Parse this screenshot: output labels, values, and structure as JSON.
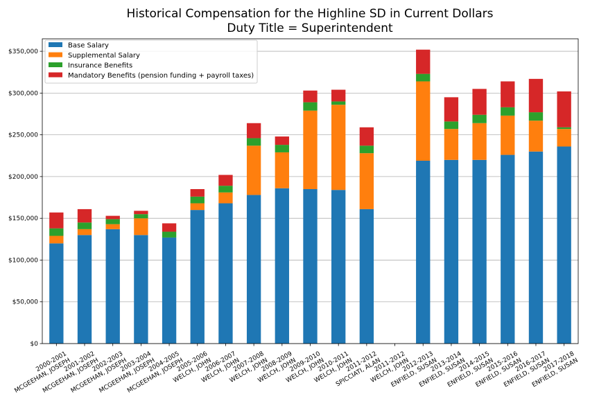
{
  "chart_data": {
    "type": "bar",
    "stacked": true,
    "title_line1": "Historical Compensation for the Highline SD in Current Dollars",
    "title_line2": "Duty Title = Superintendent",
    "xlabel": "",
    "ylabel": "",
    "ylim": [
      0,
      365000
    ],
    "yticks": [
      {
        "value": 0,
        "label": "$0"
      },
      {
        "value": 50000,
        "label": "$50,000"
      },
      {
        "value": 100000,
        "label": "$100,000"
      },
      {
        "value": 150000,
        "label": "$150,000"
      },
      {
        "value": 200000,
        "label": "$200,000"
      },
      {
        "value": 250000,
        "label": "$250,000"
      },
      {
        "value": 300000,
        "label": "$300,000"
      },
      {
        "value": 350000,
        "label": "$350,000"
      }
    ],
    "grid": "horizontal",
    "legend_position": "top-left",
    "categories": [
      {
        "line1": "2000-2001",
        "line2": "MCGEEHAN, JOSEPH"
      },
      {
        "line1": "2001-2002",
        "line2": "MCGEEHAN, JOSEPH"
      },
      {
        "line1": "2002-2003",
        "line2": "MCGEEHAN, JOSEPH"
      },
      {
        "line1": "2003-2004",
        "line2": "MCGEEHAN, JOSEPH"
      },
      {
        "line1": "2004-2005",
        "line2": "MCGEEHAN, JOSEPH"
      },
      {
        "line1": "2005-2006",
        "line2": "WELCH, JOHN"
      },
      {
        "line1": "2006-2007",
        "line2": "WELCH, JOHN"
      },
      {
        "line1": "2007-2008",
        "line2": "WELCH, JOHN"
      },
      {
        "line1": "2008-2009",
        "line2": "WELCH, JOHN"
      },
      {
        "line1": "2009-2010",
        "line2": "WELCH, JOHN"
      },
      {
        "line1": "2010-2011",
        "line2": "WELCH, JOHN"
      },
      {
        "line1": "2011-2012",
        "line2": "SPICCIATI, ALAN"
      },
      {
        "line1": "2011-2012",
        "line2": "WELCH, JOHN"
      },
      {
        "line1": "2012-2013",
        "line2": "ENFIELD, SUSAN"
      },
      {
        "line1": "2013-2014",
        "line2": "ENFIELD, SUSAN"
      },
      {
        "line1": "2014-2015",
        "line2": "ENFIELD, SUSAN"
      },
      {
        "line1": "2015-2016",
        "line2": "ENFIELD, SUSAN"
      },
      {
        "line1": "2016-2017",
        "line2": "ENFIELD, SUSAN"
      },
      {
        "line1": "2017-2018",
        "line2": "ENFIELD, SUSAN"
      }
    ],
    "series": [
      {
        "name": "Base Salary",
        "color": "#1f77b4",
        "values": [
          120000,
          130000,
          137000,
          130000,
          127000,
          160000,
          168000,
          178000,
          186000,
          185000,
          184000,
          161000,
          0,
          219000,
          220000,
          220000,
          226000,
          230000,
          236000
        ]
      },
      {
        "name": "Supplemental Salary",
        "color": "#ff7f0e",
        "values": [
          9000,
          7000,
          6000,
          20000,
          0,
          8000,
          13000,
          59000,
          43000,
          94000,
          102000,
          67000,
          0,
          95000,
          37000,
          44000,
          47000,
          37000,
          21000
        ]
      },
      {
        "name": "Insurance Benefits",
        "color": "#2ca02c",
        "values": [
          9000,
          8000,
          6000,
          5000,
          7000,
          8000,
          8000,
          9000,
          9000,
          10000,
          4000,
          9000,
          0,
          9000,
          9000,
          10000,
          10000,
          10000,
          2000
        ]
      },
      {
        "name": "Mandatory Benefits (pension funding + payroll taxes)",
        "color": "#d62728",
        "values": [
          19000,
          16000,
          4000,
          4000,
          10000,
          9000,
          13000,
          18000,
          10000,
          14000,
          14000,
          22000,
          0,
          29000,
          29000,
          31000,
          31000,
          40000,
          43000
        ]
      }
    ]
  }
}
